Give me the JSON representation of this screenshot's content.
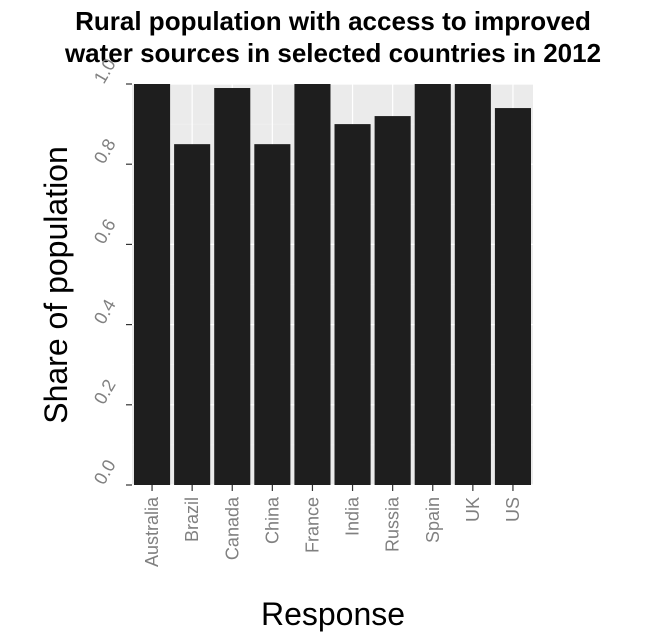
{
  "chart_data": {
    "type": "bar",
    "title_lines": [
      "Rural population with access to improved",
      "water sources in selected countries in 2012"
    ],
    "xlabel": "Response",
    "ylabel": "Share of population",
    "categories": [
      "Australia",
      "Brazil",
      "Canada",
      "China",
      "France",
      "India",
      "Russia",
      "Spain",
      "UK",
      "US"
    ],
    "values": [
      1.0,
      0.85,
      0.99,
      0.85,
      1.0,
      0.9,
      0.92,
      1.0,
      1.0,
      0.94
    ],
    "ylim": [
      0,
      1.0
    ],
    "yticks": [
      "0.0",
      "0.2",
      "0.4",
      "0.6",
      "0.8",
      "1.0"
    ],
    "grid": true,
    "colors": {
      "bar": "#1e1e1e",
      "panel": "#ebebeb",
      "gridline": "#ffffff",
      "tick_label": "#808080"
    }
  }
}
